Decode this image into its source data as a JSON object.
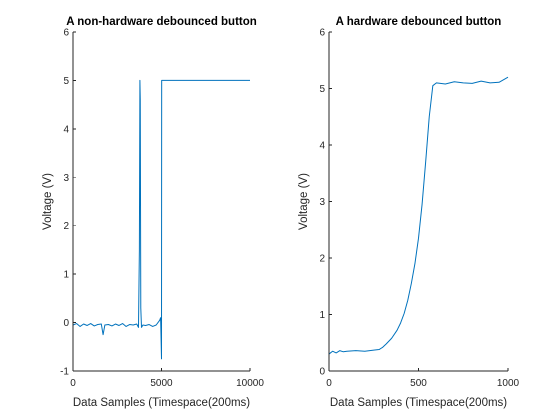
{
  "chart_data": [
    {
      "type": "line",
      "title": "A non-hardware debounced button",
      "xlabel": "Data Samples (Timespace(200ms)",
      "ylabel": "Voltage (V)",
      "xlim": [
        0,
        10000
      ],
      "ylim": [
        -1,
        6
      ],
      "xticks": [
        0,
        5000,
        10000
      ],
      "xtick_labels": [
        "0",
        "5000",
        "10000"
      ],
      "yticks": [
        -1,
        0,
        1,
        2,
        3,
        4,
        5,
        6
      ],
      "ytick_labels": [
        "-1",
        "0",
        "1",
        "2",
        "3",
        "4",
        "5",
        "6"
      ],
      "grid": false,
      "series": [
        {
          "color": "#0072BD",
          "x": [
            0,
            200,
            400,
            600,
            800,
            1000,
            1200,
            1400,
            1600,
            1700,
            1800,
            2000,
            2200,
            2400,
            2600,
            2800,
            3000,
            3200,
            3400,
            3600,
            3700,
            3750,
            3780,
            3800,
            3830,
            3870,
            3950,
            4100,
            4300,
            4500,
            4700,
            4900,
            4950,
            5000,
            5010,
            5050,
            5200,
            6000,
            7000,
            8000,
            9000,
            10000
          ],
          "y": [
            -0.05,
            -0.02,
            -0.08,
            -0.03,
            -0.06,
            -0.02,
            -0.07,
            -0.04,
            -0.03,
            -0.25,
            -0.05,
            -0.04,
            -0.07,
            -0.03,
            -0.06,
            -0.02,
            -0.08,
            -0.04,
            -0.05,
            -0.03,
            -0.1,
            1.5,
            5.0,
            4.6,
            0.3,
            -0.1,
            -0.05,
            -0.06,
            -0.04,
            -0.08,
            -0.05,
            0.05,
            0.1,
            -0.75,
            5.0,
            5.0,
            5.0,
            5.0,
            5.0,
            5.0,
            5.0,
            5.0
          ]
        }
      ]
    },
    {
      "type": "line",
      "title": "A hardware debounced button",
      "xlabel": "Data Samples (Timespace(200ms)",
      "ylabel": "Voltage (V)",
      "xlim": [
        0,
        1000
      ],
      "ylim": [
        0,
        6
      ],
      "xticks": [
        0,
        500,
        1000
      ],
      "xtick_labels": [
        "0",
        "500",
        "1000"
      ],
      "yticks": [
        0,
        1,
        2,
        3,
        4,
        5,
        6
      ],
      "ytick_labels": [
        "0",
        "1",
        "2",
        "3",
        "4",
        "5",
        "6"
      ],
      "grid": false,
      "series": [
        {
          "color": "#0072BD",
          "x": [
            0,
            20,
            40,
            60,
            80,
            100,
            150,
            200,
            250,
            280,
            300,
            320,
            350,
            380,
            400,
            420,
            440,
            460,
            480,
            500,
            520,
            540,
            560,
            580,
            600,
            650,
            700,
            750,
            800,
            850,
            900,
            950,
            1000
          ],
          "y": [
            0.3,
            0.35,
            0.32,
            0.36,
            0.34,
            0.35,
            0.36,
            0.35,
            0.37,
            0.38,
            0.42,
            0.48,
            0.58,
            0.72,
            0.85,
            1.02,
            1.25,
            1.55,
            1.9,
            2.35,
            2.95,
            3.7,
            4.5,
            5.05,
            5.1,
            5.08,
            5.12,
            5.1,
            5.09,
            5.13,
            5.1,
            5.11,
            5.2
          ]
        }
      ]
    }
  ]
}
